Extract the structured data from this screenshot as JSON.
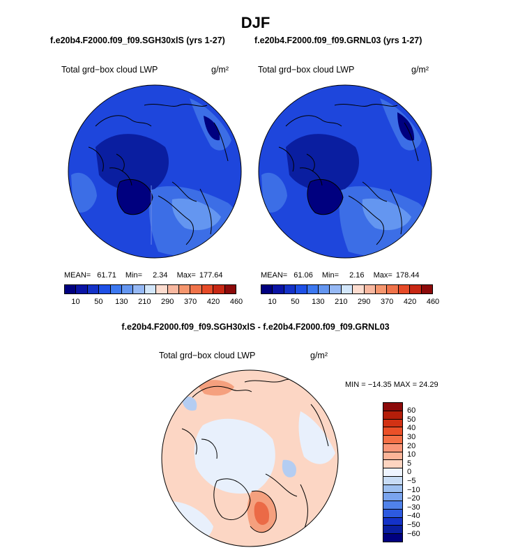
{
  "title": "DJF",
  "panels": [
    {
      "subtitle": "f.e20b4.F2000.f09_f09.SGH30xlS (yrs 1-27)",
      "label": "Total grd−box cloud LWP",
      "units": "g/m²",
      "stats": {
        "mean_label": "MEAN=",
        "mean": "61.71",
        "min_label": "Min=",
        "min": "2.34",
        "max_label": "Max=",
        "max": "177.64"
      }
    },
    {
      "subtitle": "f.e20b4.F2000.f09_f09.GRNL03 (yrs 1-27)",
      "label": "Total grd−box cloud LWP",
      "units": "g/m²",
      "stats": {
        "mean_label": "MEAN=",
        "mean": "61.06",
        "min_label": "Min=",
        "min": "2.16",
        "max_label": "Max=",
        "max": "178.44"
      }
    }
  ],
  "colorbar_top": {
    "colors": [
      "#00007f",
      "#0a14a5",
      "#1432c8",
      "#1e50e6",
      "#3c78f0",
      "#6496f0",
      "#96b9f5",
      "#d2e6fa",
      "#fcdccf",
      "#f8b8a0",
      "#f5966e",
      "#f0734a",
      "#e64b28",
      "#c82814",
      "#8c0a0a"
    ],
    "tick_labels": [
      "10",
      "50",
      "130",
      "210",
      "290",
      "370",
      "420",
      "460"
    ]
  },
  "diff": {
    "subtitle": "f.e20b4.F2000.f09_f09.SGH30xlS - f.e20b4.F2000.f09_f09.GRNL03",
    "label": "Total grd−box cloud LWP",
    "units": "g/m²",
    "minmax": "MIN = −14.35 MAX =  24.29",
    "colorbar": {
      "colors": [
        "#8c0a0a",
        "#b41e0a",
        "#d23214",
        "#eb5028",
        "#f57046",
        "#fa9678",
        "#fcb498",
        "#fdd4c0",
        "#eef4ff",
        "#c8dcf5",
        "#9ec0f0",
        "#7aa4ee",
        "#5082ea",
        "#2d5ae0",
        "#1432c8",
        "#0a1ea0",
        "#00007f"
      ],
      "labels": [
        "60",
        "50",
        "40",
        "30",
        "20",
        "10",
        "5",
        "0",
        "−5",
        "−10",
        "−20",
        "−30",
        "−40",
        "−50",
        "−60"
      ]
    }
  },
  "map_colors": {
    "dark": "#00007f",
    "deep": "#0a1ea0",
    "base": "#1e46dc",
    "mid": "#3c6ee6",
    "light": "#6496f0",
    "pale": "#96b9f5",
    "diff_neutral": "#e8f0fc",
    "diff_pink": "#fcd6c4",
    "diff_salmon": "#f5a07e",
    "diff_red": "#eb6a46",
    "diff_blue": "#b4cdf2",
    "coast": "#000000"
  }
}
